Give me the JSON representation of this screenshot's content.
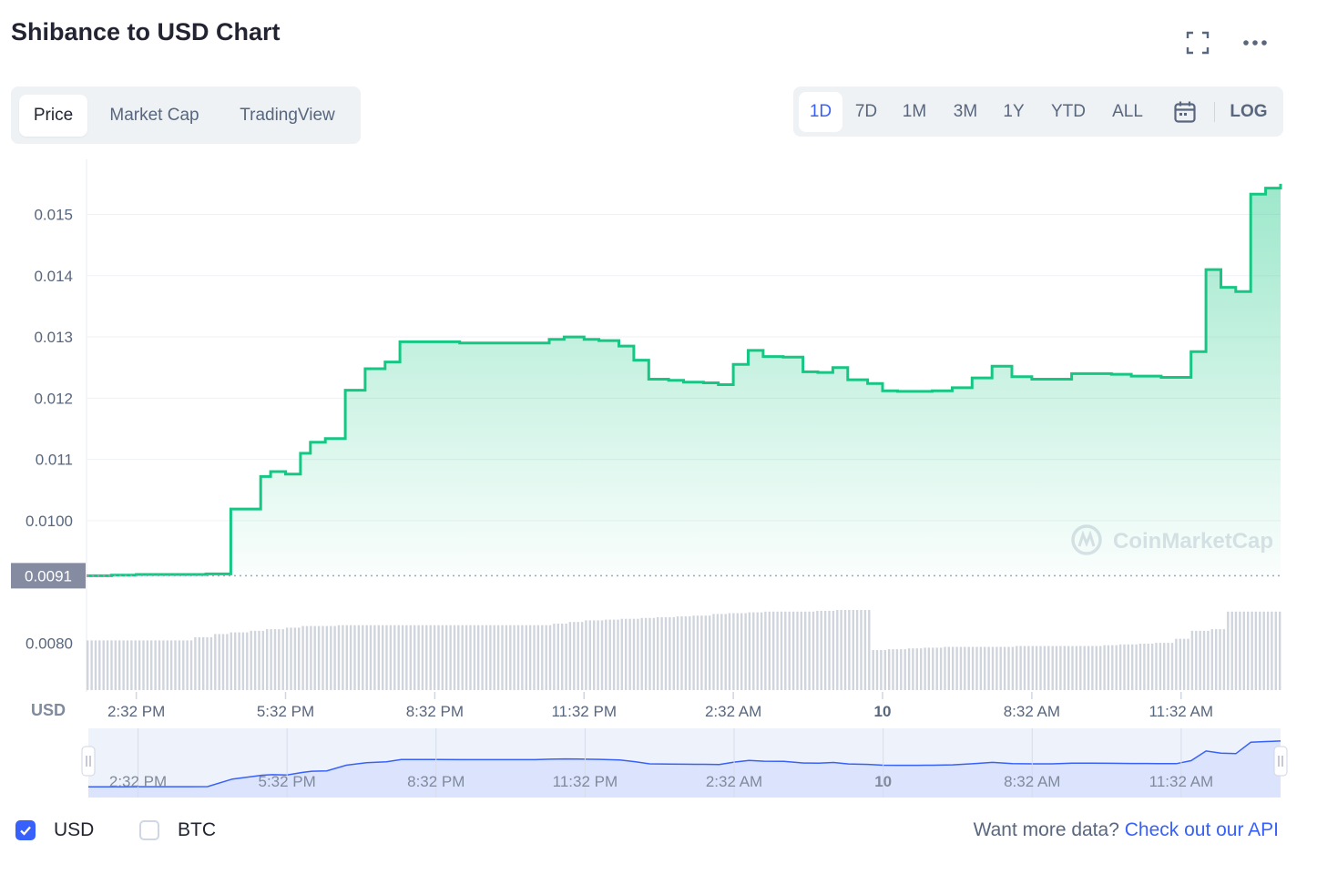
{
  "title": "Shibance to USD Chart",
  "header_icons": [
    "fullscreen-icon",
    "more-icon"
  ],
  "tabs": [
    {
      "label": "Price",
      "active": true
    },
    {
      "label": "Market Cap",
      "active": false
    },
    {
      "label": "TradingView",
      "active": false
    }
  ],
  "ranges": [
    {
      "label": "1D",
      "active": true
    },
    {
      "label": "7D",
      "active": false
    },
    {
      "label": "1M",
      "active": false
    },
    {
      "label": "3M",
      "active": false
    },
    {
      "label": "1Y",
      "active": false
    },
    {
      "label": "YTD",
      "active": false
    },
    {
      "label": "ALL",
      "active": false
    }
  ],
  "calendar_icon": "calendar-icon",
  "log_label": "LOG",
  "chart_data": {
    "type": "area",
    "title": "",
    "currency_label": "USD",
    "ylabel": "",
    "xlabel": "",
    "y_ticks": [
      "0.015",
      "0.014",
      "0.013",
      "0.012",
      "0.011",
      "0.0100",
      "0.0080"
    ],
    "y_tick_values": [
      0.015,
      0.014,
      0.013,
      0.012,
      0.011,
      0.01,
      0.008
    ],
    "current_price_label": "0.0091",
    "current_price": 0.0091,
    "ylim": [
      0.0075,
      0.0159
    ],
    "x_ticks": [
      "2:32 PM",
      "5:32 PM",
      "8:32 PM",
      "11:32 PM",
      "2:32 AM",
      "10",
      "8:32 AM",
      "11:32 AM"
    ],
    "x_tick_hours": [
      1,
      4,
      7,
      10,
      13,
      16,
      19,
      22
    ],
    "x_tick_bold": [
      false,
      false,
      false,
      false,
      false,
      true,
      false,
      false
    ],
    "xlim_hours": [
      0,
      24
    ],
    "series": [
      {
        "color": "#16c784",
        "x_hours": [
          0,
          0.5,
          1,
          1.5,
          2,
          2.4,
          2.9,
          3.5,
          3.7,
          4.0,
          4.3,
          4.5,
          4.8,
          5.2,
          5.6,
          6.0,
          6.3,
          6.6,
          7.0,
          7.5,
          8.0,
          8.5,
          9.0,
          9.3,
          9.6,
          10.0,
          10.3,
          10.7,
          11.0,
          11.3,
          11.7,
          12.0,
          12.4,
          12.7,
          13.0,
          13.3,
          13.6,
          14.0,
          14.4,
          14.7,
          15.0,
          15.3,
          15.7,
          16.0,
          16.3,
          16.7,
          17.0,
          17.4,
          17.8,
          18.2,
          18.6,
          19.0,
          19.4,
          19.8,
          20.2,
          20.6,
          21.0,
          21.3,
          21.6,
          21.9,
          22.2,
          22.5,
          22.8,
          23.1,
          23.4,
          23.7,
          24.0
        ],
        "y": [
          0.0091,
          0.00911,
          0.00912,
          0.00912,
          0.00912,
          0.00913,
          0.01019,
          0.01072,
          0.0108,
          0.01076,
          0.0111,
          0.01128,
          0.01134,
          0.01213,
          0.01248,
          0.01259,
          0.01292,
          0.01292,
          0.01292,
          0.0129,
          0.0129,
          0.0129,
          0.0129,
          0.01296,
          0.013,
          0.01296,
          0.01294,
          0.01285,
          0.01262,
          0.01231,
          0.01229,
          0.01226,
          0.01225,
          0.01222,
          0.01255,
          0.01278,
          0.01268,
          0.01267,
          0.01243,
          0.01242,
          0.0125,
          0.0123,
          0.01224,
          0.01212,
          0.01211,
          0.01211,
          0.01212,
          0.01217,
          0.01233,
          0.01252,
          0.01235,
          0.01231,
          0.01231,
          0.0124,
          0.0124,
          0.01239,
          0.01236,
          0.01236,
          0.01234,
          0.01234,
          0.01276,
          0.0141,
          0.01381,
          0.01374,
          0.01533,
          0.01543,
          0.0155
        ]
      }
    ],
    "volume_bar_levels": [
      0.62,
      0.62,
      0.62,
      0.62,
      0.62,
      0.62,
      0.66,
      0.7,
      0.72,
      0.74,
      0.76,
      0.78,
      0.8,
      0.8,
      0.81,
      0.81,
      0.81,
      0.81,
      0.81,
      0.81,
      0.81,
      0.81,
      0.81,
      0.81,
      0.81,
      0.81,
      0.83,
      0.85,
      0.87,
      0.88,
      0.89,
      0.9,
      0.91,
      0.92,
      0.93,
      0.95,
      0.96,
      0.97,
      0.98,
      0.98,
      0.98,
      0.99,
      1.0,
      1.0,
      0.5,
      0.51,
      0.52,
      0.53,
      0.54,
      0.54,
      0.54,
      0.54,
      0.55,
      0.55,
      0.55,
      0.55,
      0.55,
      0.56,
      0.57,
      0.58,
      0.59,
      0.64,
      0.74,
      0.76,
      0.98,
      0.98,
      0.98
    ],
    "navigator_x_ticks": [
      "2:32 PM",
      "5:32 PM",
      "8:32 PM",
      "11:32 PM",
      "2:32 AM",
      "10",
      "8:32 AM",
      "11:32 AM"
    ],
    "watermark": "CoinMarketCap",
    "grid": true
  },
  "currency_options": [
    {
      "label": "USD",
      "checked": true
    },
    {
      "label": "BTC",
      "checked": false
    }
  ],
  "api": {
    "prefix": "Want more data?",
    "link": "Check out our API"
  }
}
